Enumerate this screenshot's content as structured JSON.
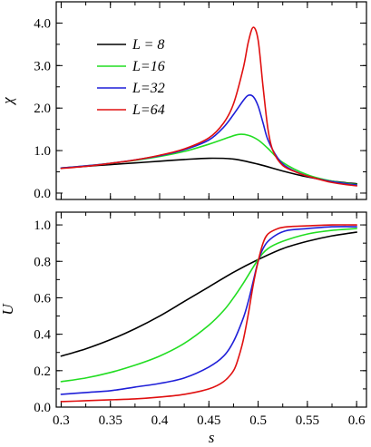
{
  "chart_data": [
    {
      "type": "line",
      "panel": "top",
      "title": "",
      "xlabel": "",
      "ylabel": "χ",
      "xlim": [
        0.295,
        0.61
      ],
      "ylim": [
        -0.15,
        4.5
      ],
      "x_ticks": [
        0.3,
        0.35,
        0.4,
        0.45,
        0.5,
        0.55,
        0.6
      ],
      "show_x_tick_labels": false,
      "y_ticks": [
        0.0,
        1.0,
        2.0,
        3.0,
        4.0
      ],
      "y_tick_labels": [
        "0.0",
        "1.0",
        "2.0",
        "3.0",
        "4.0"
      ],
      "y_minor_step": 0.5,
      "x_minor_step": 0.025,
      "grid": false,
      "legend_placement": "top-left",
      "series": [
        {
          "name": "L = 8",
          "color": "#000000",
          "x": [
            0.3,
            0.325,
            0.35,
            0.375,
            0.4,
            0.425,
            0.45,
            0.475,
            0.5,
            0.525,
            0.55,
            0.575,
            0.6
          ],
          "values": [
            0.59,
            0.63,
            0.67,
            0.71,
            0.75,
            0.79,
            0.82,
            0.8,
            0.68,
            0.52,
            0.38,
            0.28,
            0.22
          ]
        },
        {
          "name": "L=16",
          "color": "#22dd22",
          "x": [
            0.3,
            0.325,
            0.35,
            0.375,
            0.4,
            0.425,
            0.45,
            0.47,
            0.48,
            0.49,
            0.5,
            0.51,
            0.525,
            0.55,
            0.575,
            0.6
          ],
          "values": [
            0.59,
            0.64,
            0.7,
            0.77,
            0.86,
            0.98,
            1.15,
            1.31,
            1.38,
            1.36,
            1.25,
            1.05,
            0.72,
            0.43,
            0.28,
            0.2
          ]
        },
        {
          "name": "L=32",
          "color": "#1f1fd8",
          "x": [
            0.3,
            0.325,
            0.35,
            0.375,
            0.4,
            0.425,
            0.45,
            0.465,
            0.475,
            0.485,
            0.49,
            0.495,
            0.5,
            0.505,
            0.51,
            0.52,
            0.53,
            0.55,
            0.575,
            0.6
          ],
          "values": [
            0.59,
            0.64,
            0.7,
            0.78,
            0.88,
            1.02,
            1.25,
            1.55,
            1.85,
            2.18,
            2.3,
            2.27,
            2.05,
            1.65,
            1.25,
            0.82,
            0.6,
            0.4,
            0.27,
            0.19
          ]
        },
        {
          "name": "L=64",
          "color": "#e01010",
          "x": [
            0.3,
            0.325,
            0.35,
            0.375,
            0.4,
            0.425,
            0.45,
            0.465,
            0.475,
            0.485,
            0.49,
            0.495,
            0.5,
            0.505,
            0.51,
            0.515,
            0.525,
            0.54,
            0.55,
            0.575,
            0.6
          ],
          "values": [
            0.58,
            0.63,
            0.7,
            0.78,
            0.89,
            1.04,
            1.3,
            1.65,
            2.1,
            2.95,
            3.55,
            3.9,
            3.6,
            2.5,
            1.5,
            1.0,
            0.65,
            0.48,
            0.4,
            0.25,
            0.17
          ]
        }
      ]
    },
    {
      "type": "line",
      "panel": "bottom",
      "title": "",
      "xlabel": "s",
      "ylabel": "U",
      "xlim": [
        0.295,
        0.61
      ],
      "ylim": [
        0.0,
        1.07
      ],
      "x_ticks": [
        0.3,
        0.35,
        0.4,
        0.45,
        0.5,
        0.55,
        0.6
      ],
      "x_tick_labels": [
        "0.3",
        "0.35",
        "0.4",
        "0.45",
        "0.5",
        "0.55",
        "0.6"
      ],
      "show_x_tick_labels": true,
      "y_ticks": [
        0.0,
        0.2,
        0.4,
        0.6,
        0.8,
        1.0
      ],
      "y_tick_labels": [
        "0.0",
        "0.2",
        "0.4",
        "0.6",
        "0.8",
        "1.0"
      ],
      "y_minor_step": 0.1,
      "x_minor_step": 0.025,
      "grid": false,
      "series": [
        {
          "name": "L = 8",
          "color": "#000000",
          "x": [
            0.3,
            0.325,
            0.35,
            0.375,
            0.4,
            0.425,
            0.45,
            0.475,
            0.5,
            0.525,
            0.55,
            0.575,
            0.6
          ],
          "values": [
            0.28,
            0.32,
            0.37,
            0.43,
            0.5,
            0.58,
            0.66,
            0.74,
            0.81,
            0.87,
            0.91,
            0.94,
            0.96
          ]
        },
        {
          "name": "L=16",
          "color": "#22dd22",
          "x": [
            0.3,
            0.325,
            0.35,
            0.375,
            0.4,
            0.425,
            0.45,
            0.465,
            0.475,
            0.485,
            0.5,
            0.51,
            0.525,
            0.55,
            0.575,
            0.6
          ],
          "values": [
            0.14,
            0.16,
            0.19,
            0.23,
            0.28,
            0.35,
            0.45,
            0.53,
            0.6,
            0.68,
            0.81,
            0.87,
            0.91,
            0.95,
            0.97,
            0.98
          ]
        },
        {
          "name": "L=32",
          "color": "#1f1fd8",
          "x": [
            0.3,
            0.325,
            0.35,
            0.375,
            0.4,
            0.425,
            0.45,
            0.465,
            0.475,
            0.485,
            0.49,
            0.495,
            0.5,
            0.505,
            0.51,
            0.52,
            0.53,
            0.55,
            0.575,
            0.6
          ],
          "values": [
            0.07,
            0.08,
            0.09,
            0.11,
            0.13,
            0.16,
            0.22,
            0.28,
            0.36,
            0.49,
            0.58,
            0.69,
            0.8,
            0.87,
            0.91,
            0.95,
            0.97,
            0.98,
            0.99,
            0.99
          ]
        },
        {
          "name": "L=64",
          "color": "#e01010",
          "x": [
            0.3,
            0.325,
            0.35,
            0.375,
            0.4,
            0.425,
            0.45,
            0.465,
            0.475,
            0.48,
            0.485,
            0.49,
            0.495,
            0.5,
            0.505,
            0.51,
            0.52,
            0.53,
            0.55,
            0.575,
            0.6
          ],
          "values": [
            0.03,
            0.035,
            0.04,
            0.045,
            0.055,
            0.07,
            0.1,
            0.14,
            0.2,
            0.27,
            0.37,
            0.51,
            0.67,
            0.8,
            0.9,
            0.95,
            0.98,
            0.99,
            0.995,
            1.0,
            1.0
          ]
        }
      ]
    }
  ]
}
